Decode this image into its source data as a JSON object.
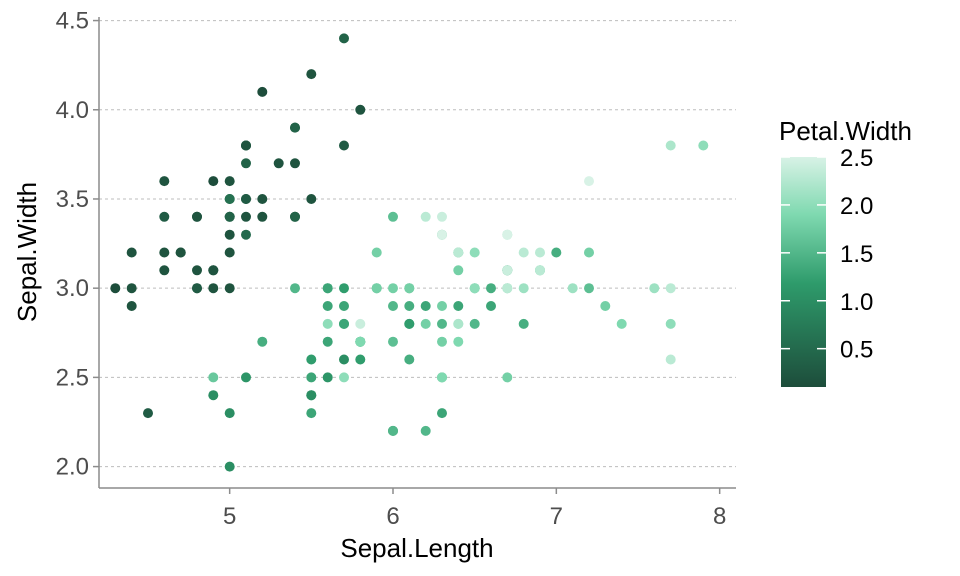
{
  "chart_data": {
    "type": "scatter",
    "title": "",
    "xlabel": "Sepal.Length",
    "ylabel": "Sepal.Width",
    "color_label": "Petal.Width",
    "xlim": [
      4.2,
      8.1
    ],
    "ylim": [
      1.88,
      4.52
    ],
    "x_ticks": [
      5,
      6,
      7,
      8
    ],
    "x_tick_labels": [
      "5",
      "6",
      "7",
      "8"
    ],
    "y_ticks": [
      2.0,
      2.5,
      3.0,
      3.5,
      4.0,
      4.5
    ],
    "y_tick_labels": [
      "2.0",
      "2.5",
      "3.0",
      "3.5",
      "4.0",
      "4.5"
    ],
    "y_grid": true,
    "x_grid": false,
    "legend_position": "right",
    "color_scale": {
      "min": 0.1,
      "max": 2.5,
      "low_color": "#1d4d3b",
      "mid_color": "#2e9b6b",
      "high_color": "#d8f2e6",
      "ticks": [
        0.5,
        1.0,
        1.5,
        2.0,
        2.5
      ],
      "tick_labels": [
        "0.5",
        "1.0",
        "1.5",
        "2.0",
        "2.5"
      ]
    },
    "points": [
      [
        5.1,
        3.5,
        0.2
      ],
      [
        4.9,
        3.0,
        0.2
      ],
      [
        4.7,
        3.2,
        0.2
      ],
      [
        4.6,
        3.1,
        0.2
      ],
      [
        5.0,
        3.6,
        0.2
      ],
      [
        5.4,
        3.9,
        0.4
      ],
      [
        4.6,
        3.4,
        0.3
      ],
      [
        5.0,
        3.4,
        0.2
      ],
      [
        4.4,
        2.9,
        0.2
      ],
      [
        4.9,
        3.1,
        0.1
      ],
      [
        5.4,
        3.7,
        0.2
      ],
      [
        4.8,
        3.4,
        0.2
      ],
      [
        4.8,
        3.0,
        0.1
      ],
      [
        4.3,
        3.0,
        0.1
      ],
      [
        5.8,
        4.0,
        0.2
      ],
      [
        5.7,
        4.4,
        0.4
      ],
      [
        5.4,
        3.9,
        0.4
      ],
      [
        5.1,
        3.5,
        0.3
      ],
      [
        5.7,
        3.8,
        0.3
      ],
      [
        5.1,
        3.8,
        0.3
      ],
      [
        5.4,
        3.4,
        0.2
      ],
      [
        5.1,
        3.7,
        0.4
      ],
      [
        4.6,
        3.6,
        0.2
      ],
      [
        5.1,
        3.3,
        0.5
      ],
      [
        4.8,
        3.4,
        0.2
      ],
      [
        5.0,
        3.0,
        0.2
      ],
      [
        5.0,
        3.4,
        0.4
      ],
      [
        5.2,
        3.5,
        0.2
      ],
      [
        5.2,
        3.4,
        0.2
      ],
      [
        4.7,
        3.2,
        0.2
      ],
      [
        4.8,
        3.1,
        0.2
      ],
      [
        5.4,
        3.4,
        0.4
      ],
      [
        5.2,
        4.1,
        0.1
      ],
      [
        5.5,
        4.2,
        0.2
      ],
      [
        4.9,
        3.1,
        0.2
      ],
      [
        5.0,
        3.2,
        0.2
      ],
      [
        5.5,
        3.5,
        0.2
      ],
      [
        4.9,
        3.6,
        0.1
      ],
      [
        4.4,
        3.0,
        0.2
      ],
      [
        5.1,
        3.4,
        0.2
      ],
      [
        5.0,
        3.5,
        0.3
      ],
      [
        4.5,
        2.3,
        0.3
      ],
      [
        4.4,
        3.2,
        0.2
      ],
      [
        5.0,
        3.5,
        0.6
      ],
      [
        5.1,
        3.8,
        0.4
      ],
      [
        4.8,
        3.0,
        0.3
      ],
      [
        5.1,
        3.8,
        0.2
      ],
      [
        4.6,
        3.2,
        0.2
      ],
      [
        5.3,
        3.7,
        0.2
      ],
      [
        5.0,
        3.3,
        0.2
      ],
      [
        7.0,
        3.2,
        1.4
      ],
      [
        6.4,
        3.2,
        1.5
      ],
      [
        6.9,
        3.1,
        1.5
      ],
      [
        5.5,
        2.3,
        1.3
      ],
      [
        6.5,
        2.8,
        1.5
      ],
      [
        5.7,
        2.8,
        1.3
      ],
      [
        6.3,
        3.3,
        1.6
      ],
      [
        4.9,
        2.4,
        1.0
      ],
      [
        6.6,
        2.9,
        1.3
      ],
      [
        5.2,
        2.7,
        1.4
      ],
      [
        5.0,
        2.0,
        1.0
      ],
      [
        5.9,
        3.0,
        1.5
      ],
      [
        6.0,
        2.2,
        1.0
      ],
      [
        6.1,
        2.9,
        1.4
      ],
      [
        5.6,
        2.9,
        1.3
      ],
      [
        6.7,
        3.1,
        1.4
      ],
      [
        5.6,
        3.0,
        1.5
      ],
      [
        5.8,
        2.7,
        1.0
      ],
      [
        6.2,
        2.2,
        1.5
      ],
      [
        5.6,
        2.5,
        1.1
      ],
      [
        5.9,
        3.2,
        1.8
      ],
      [
        6.1,
        2.8,
        1.3
      ],
      [
        6.3,
        2.5,
        1.5
      ],
      [
        6.1,
        2.8,
        1.2
      ],
      [
        6.4,
        2.9,
        1.3
      ],
      [
        6.6,
        3.0,
        1.4
      ],
      [
        6.8,
        2.8,
        1.4
      ],
      [
        6.7,
        3.0,
        1.7
      ],
      [
        6.0,
        2.9,
        1.5
      ],
      [
        5.7,
        2.6,
        1.0
      ],
      [
        5.5,
        2.4,
        1.1
      ],
      [
        5.5,
        2.4,
        1.0
      ],
      [
        5.8,
        2.7,
        1.2
      ],
      [
        6.0,
        2.7,
        1.6
      ],
      [
        5.4,
        3.0,
        1.5
      ],
      [
        6.0,
        3.4,
        1.6
      ],
      [
        6.7,
        3.1,
        1.5
      ],
      [
        6.3,
        2.3,
        1.3
      ],
      [
        5.6,
        3.0,
        1.3
      ],
      [
        5.5,
        2.5,
        1.3
      ],
      [
        5.5,
        2.6,
        1.2
      ],
      [
        6.1,
        3.0,
        1.4
      ],
      [
        5.8,
        2.6,
        1.2
      ],
      [
        5.0,
        2.3,
        1.0
      ],
      [
        5.6,
        2.7,
        1.3
      ],
      [
        5.7,
        3.0,
        1.2
      ],
      [
        5.7,
        2.9,
        1.3
      ],
      [
        6.2,
        2.9,
        1.3
      ],
      [
        5.1,
        2.5,
        1.1
      ],
      [
        5.7,
        2.8,
        1.3
      ],
      [
        6.3,
        3.3,
        2.5
      ],
      [
        5.8,
        2.7,
        1.9
      ],
      [
        7.1,
        3.0,
        2.1
      ],
      [
        6.3,
        2.9,
        1.8
      ],
      [
        6.5,
        3.0,
        2.2
      ],
      [
        7.6,
        3.0,
        2.1
      ],
      [
        4.9,
        2.5,
        1.7
      ],
      [
        7.3,
        2.9,
        1.8
      ],
      [
        6.7,
        2.5,
        1.8
      ],
      [
        7.2,
        3.6,
        2.5
      ],
      [
        6.5,
        3.2,
        2.0
      ],
      [
        6.4,
        2.7,
        1.9
      ],
      [
        6.8,
        3.0,
        2.1
      ],
      [
        5.7,
        2.5,
        2.0
      ],
      [
        5.8,
        2.8,
        2.4
      ],
      [
        6.4,
        3.2,
        2.3
      ],
      [
        6.5,
        3.0,
        1.8
      ],
      [
        7.7,
        3.8,
        2.2
      ],
      [
        7.7,
        2.6,
        2.3
      ],
      [
        6.0,
        2.2,
        1.5
      ],
      [
        6.9,
        3.2,
        2.3
      ],
      [
        5.6,
        2.8,
        2.0
      ],
      [
        7.7,
        2.8,
        2.0
      ],
      [
        6.3,
        2.7,
        1.8
      ],
      [
        6.7,
        3.3,
        2.1
      ],
      [
        7.2,
        3.2,
        1.8
      ],
      [
        6.2,
        2.8,
        1.8
      ],
      [
        6.1,
        3.0,
        1.8
      ],
      [
        6.4,
        2.8,
        2.1
      ],
      [
        7.2,
        3.0,
        1.6
      ],
      [
        7.4,
        2.8,
        1.9
      ],
      [
        7.9,
        3.8,
        2.0
      ],
      [
        6.4,
        2.8,
        2.2
      ],
      [
        6.3,
        2.8,
        1.5
      ],
      [
        6.1,
        2.6,
        1.4
      ],
      [
        7.7,
        3.0,
        2.3
      ],
      [
        6.3,
        3.4,
        2.4
      ],
      [
        6.4,
        3.1,
        1.8
      ],
      [
        6.0,
        3.0,
        1.8
      ],
      [
        6.9,
        3.1,
        2.1
      ],
      [
        6.7,
        3.1,
        2.4
      ],
      [
        6.9,
        3.1,
        2.3
      ],
      [
        5.8,
        2.7,
        1.9
      ],
      [
        6.8,
        3.2,
        2.3
      ],
      [
        6.7,
        3.3,
        2.5
      ],
      [
        6.7,
        3.0,
        2.3
      ],
      [
        6.3,
        2.5,
        1.9
      ],
      [
        6.5,
        3.0,
        2.0
      ],
      [
        6.2,
        3.4,
        2.3
      ],
      [
        5.9,
        3.0,
        1.8
      ]
    ]
  }
}
